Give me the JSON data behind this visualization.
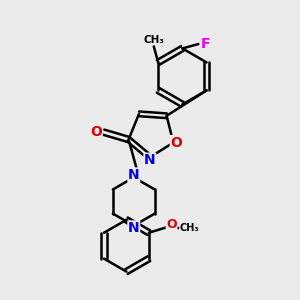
{
  "background_color": "#ebebeb",
  "bond_color": "#000000",
  "bond_width": 1.8,
  "atom_colors": {
    "N": "#0000ee",
    "O": "#dd0000",
    "F": "#ee00ee",
    "C": "#000000"
  },
  "font_size": 10,
  "figsize": [
    3.0,
    3.0
  ],
  "dpi": 100
}
